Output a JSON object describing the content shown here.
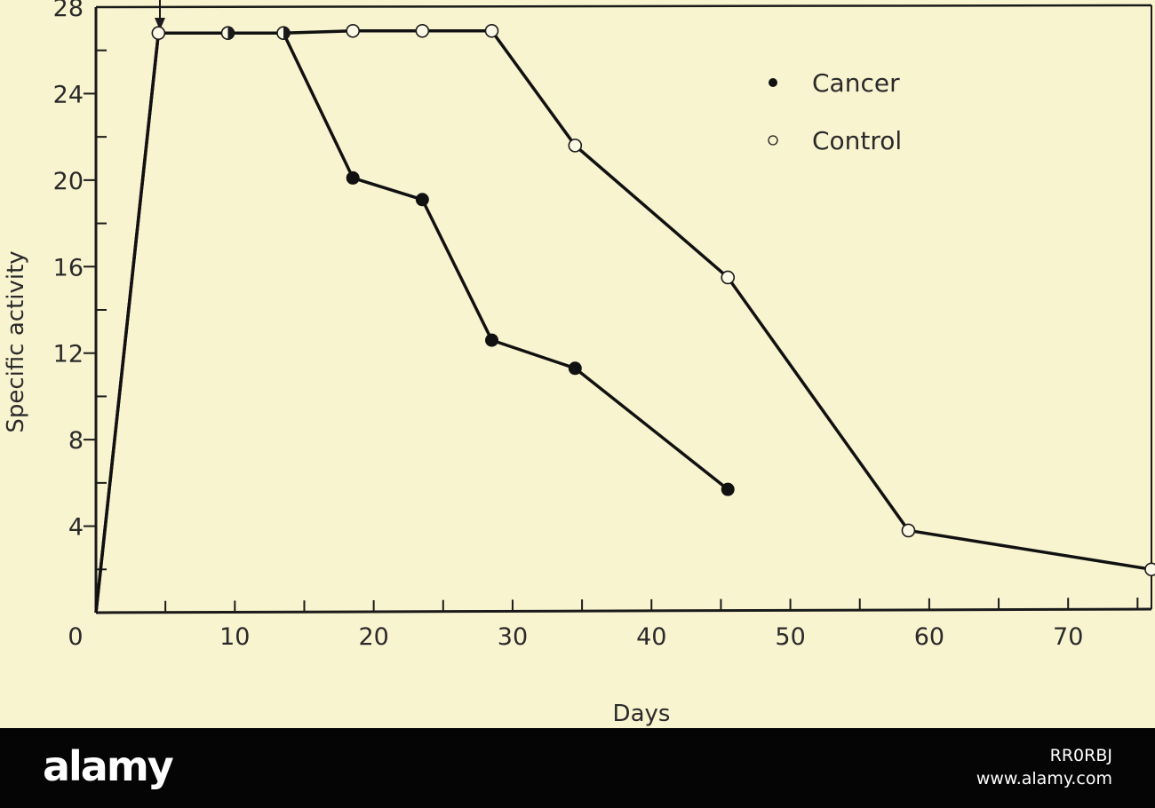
{
  "chart_data": {
    "type": "line",
    "title": "",
    "xlabel": "Days",
    "ylabel": "Specific activity",
    "xlim": [
      0,
      76
    ],
    "ylim": [
      0,
      28
    ],
    "x_ticks": [
      0,
      10,
      20,
      30,
      40,
      50,
      60,
      70
    ],
    "y_ticks": [
      4,
      8,
      12,
      16,
      20,
      24,
      28
    ],
    "x_tick_labels": [
      "0",
      "10",
      "20",
      "30",
      "40",
      "50",
      "60",
      "70"
    ],
    "y_tick_labels": [
      "4",
      "8",
      "12",
      "16",
      "20",
      "24",
      "28"
    ],
    "legend_position": "top-right",
    "series": [
      {
        "name": "Cancer",
        "marker": "filled-circle",
        "color": "#111111",
        "x": [
          0,
          4.5,
          9.5,
          13.5,
          18.5,
          23.5,
          28.5,
          34.5,
          45.5
        ],
        "y": [
          0,
          26.8,
          26.8,
          26.8,
          20.1,
          19.1,
          12.6,
          11.3,
          5.7
        ]
      },
      {
        "name": "Control",
        "marker": "open-circle",
        "color": "#111111",
        "x": [
          0,
          4.5,
          9.5,
          13.5,
          18.5,
          23.5,
          28.5,
          34.5,
          45.5,
          58.5,
          76
        ],
        "y": [
          0,
          26.8,
          26.8,
          26.8,
          26.9,
          26.9,
          26.9,
          21.6,
          15.5,
          3.8,
          2.0
        ]
      }
    ]
  },
  "footer": {
    "logo_text": "alamy",
    "image_id": "RR0RBJ",
    "site": "www.alamy.com"
  }
}
